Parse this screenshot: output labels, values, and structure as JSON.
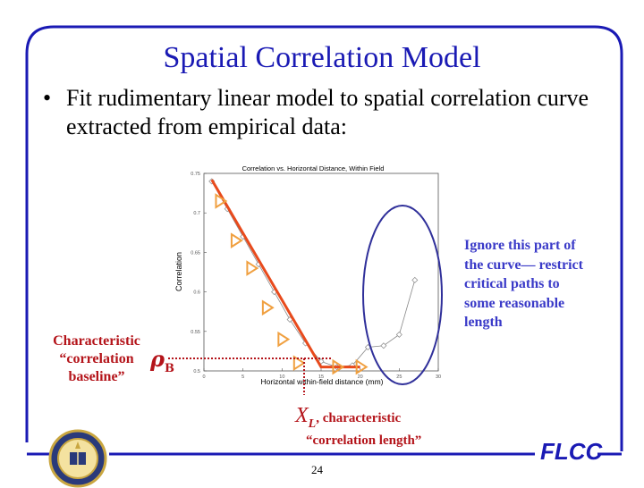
{
  "slide": {
    "title": "Spatial Correlation Model",
    "bullet_symbol": "•",
    "bullet_text": "Fit rudimentary linear model to spatial correlation curve extracted from empirical data:",
    "page_number": "24",
    "logo_text": "FLCC",
    "colors": {
      "accent_blue": "#1a1ab4",
      "annotation_red": "#b4141a",
      "fit_line": "#e84a1c",
      "marker": "#f0a040",
      "ellipse": "#30309a"
    }
  },
  "annotations": {
    "ignore_note": [
      "Ignore this part of",
      "the curve— restrict",
      "critical paths to",
      "some reasonable",
      "length"
    ],
    "baseline": [
      "Characteristic",
      "“correlation",
      "baseline”"
    ],
    "rho_symbol": "ρ",
    "rho_subscript": "B",
    "xl_symbol": "X",
    "xl_subscript": "L",
    "xl_text": ", characteristic",
    "xl_text2": "“correlation length”"
  },
  "chart_data": {
    "type": "line",
    "title": "Correlation vs. Horizontal Distance, Within Field",
    "xlabel": "Horizontal within-field distance (mm)",
    "ylabel": "Correlation",
    "xlim": [
      0,
      30
    ],
    "ylim": [
      0.5,
      0.75
    ],
    "x_ticks": [
      "0",
      "5",
      "10",
      "15",
      "20",
      "25",
      "30"
    ],
    "y_ticks": [
      "0.5",
      "0.55",
      "0.6",
      "0.65",
      "0.7",
      "0.75"
    ],
    "series": [
      {
        "x": [
          1,
          3,
          5,
          7,
          9,
          11,
          13,
          15,
          17,
          19,
          21,
          23,
          25,
          27
        ],
        "values": [
          0.74,
          0.705,
          0.67,
          0.635,
          0.6,
          0.565,
          0.535,
          0.512,
          0.505,
          0.507,
          0.53,
          0.532,
          0.546,
          0.615
        ]
      }
    ],
    "fit_line": {
      "x": [
        1,
        15,
        20
      ],
      "values": [
        0.742,
        0.505,
        0.505
      ]
    },
    "fit_markers": {
      "x": [
        2,
        4,
        6,
        8,
        10,
        12,
        17,
        20
      ],
      "values": [
        0.715,
        0.665,
        0.63,
        0.58,
        0.54,
        0.51,
        0.505,
        0.505
      ]
    }
  }
}
